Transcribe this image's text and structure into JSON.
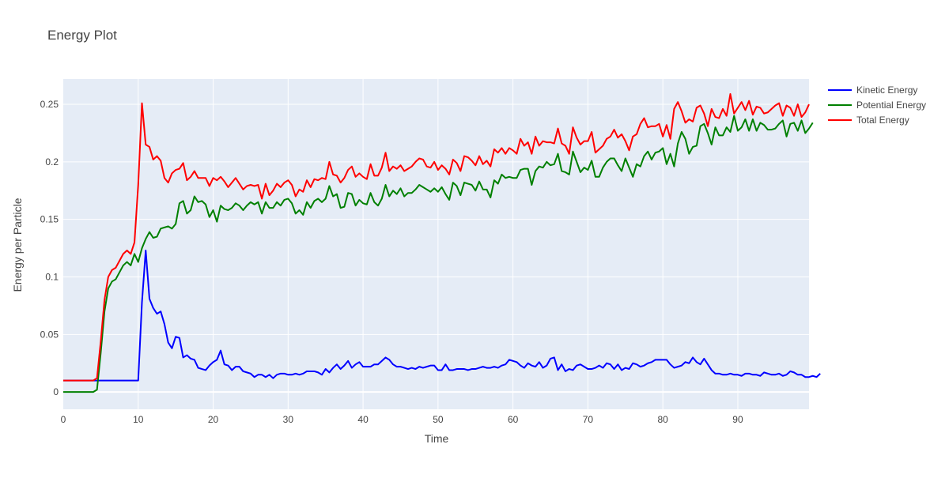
{
  "chart_data": {
    "type": "line",
    "title": "Energy Plot",
    "xlabel": "Time",
    "ylabel": "Energy per Particle",
    "xlim": [
      0,
      99.5
    ],
    "ylim": [
      -0.015,
      0.272
    ],
    "x_ticks": [
      0,
      10,
      20,
      30,
      40,
      50,
      60,
      70,
      80,
      90
    ],
    "y_ticks": [
      0,
      0.05,
      0.1,
      0.15,
      0.2,
      0.25
    ],
    "x_tick_labels": [
      "0",
      "10",
      "20",
      "30",
      "40",
      "50",
      "60",
      "70",
      "80",
      "90"
    ],
    "y_tick_labels": [
      "0",
      "0.05",
      "0.1",
      "0.15",
      "0.2",
      "0.25"
    ],
    "grid": true,
    "legend_position": "top-right, outside plot",
    "colors": {
      "plot_background": "#e5ecf6",
      "grid": "#ffffff",
      "text": "#444444",
      "title": "#444444"
    },
    "x_start": 0,
    "x_step": 0.5,
    "series": [
      {
        "name": "Kinetic Energy",
        "color": "#0000ff",
        "values": [
          0.01,
          0.01,
          0.01,
          0.01,
          0.01,
          0.01,
          0.01,
          0.01,
          0.01,
          0.01,
          0.01,
          0.01,
          0.01,
          0.01,
          0.01,
          0.01,
          0.01,
          0.01,
          0.01,
          0.01,
          0.01,
          0.078,
          0.123,
          0.081,
          0.073,
          0.068,
          0.07,
          0.059,
          0.043,
          0.038,
          0.048,
          0.047,
          0.03,
          0.032,
          0.029,
          0.028,
          0.021,
          0.02,
          0.019,
          0.023,
          0.026,
          0.028,
          0.036,
          0.024,
          0.023,
          0.019,
          0.022,
          0.022,
          0.018,
          0.017,
          0.016,
          0.013,
          0.015,
          0.015,
          0.013,
          0.015,
          0.012,
          0.015,
          0.016,
          0.016,
          0.015,
          0.015,
          0.016,
          0.015,
          0.016,
          0.018,
          0.018,
          0.018,
          0.017,
          0.015,
          0.02,
          0.017,
          0.021,
          0.024,
          0.02,
          0.023,
          0.027,
          0.021,
          0.024,
          0.026,
          0.022,
          0.022,
          0.022,
          0.024,
          0.024,
          0.027,
          0.03,
          0.028,
          0.024,
          0.022,
          0.022,
          0.021,
          0.02,
          0.021,
          0.02,
          0.022,
          0.021,
          0.022,
          0.023,
          0.023,
          0.019,
          0.019,
          0.024,
          0.019,
          0.019,
          0.02,
          0.02,
          0.02,
          0.019,
          0.02,
          0.02,
          0.021,
          0.022,
          0.021,
          0.021,
          0.022,
          0.021,
          0.023,
          0.024,
          0.028,
          0.027,
          0.026,
          0.023,
          0.021,
          0.025,
          0.023,
          0.022,
          0.026,
          0.021,
          0.023,
          0.029,
          0.03,
          0.019,
          0.024,
          0.018,
          0.02,
          0.019,
          0.023,
          0.024,
          0.022,
          0.02,
          0.02,
          0.021,
          0.023,
          0.021,
          0.025,
          0.024,
          0.02,
          0.024,
          0.019,
          0.021,
          0.02,
          0.025,
          0.024,
          0.022,
          0.023,
          0.025,
          0.026,
          0.028,
          0.028,
          0.028,
          0.028,
          0.024,
          0.021,
          0.022,
          0.023,
          0.026,
          0.025,
          0.03,
          0.026,
          0.024,
          0.029,
          0.024,
          0.019,
          0.016,
          0.016,
          0.015,
          0.015,
          0.016,
          0.015,
          0.015,
          0.014,
          0.016,
          0.016,
          0.015,
          0.015,
          0.014,
          0.017,
          0.016,
          0.015,
          0.015,
          0.016,
          0.014,
          0.015,
          0.018,
          0.017,
          0.015,
          0.015,
          0.013,
          0.013,
          0.014,
          0.013,
          0.016
        ]
      },
      {
        "name": "Potential Energy",
        "color": "#008000",
        "values": [
          0.0,
          0.0,
          0.0,
          0.0,
          0.0,
          0.0,
          0.0,
          0.0,
          0.0,
          0.002,
          0.034,
          0.07,
          0.09,
          0.096,
          0.098,
          0.104,
          0.11,
          0.113,
          0.11,
          0.12,
          0.113,
          0.125,
          0.133,
          0.139,
          0.134,
          0.135,
          0.142,
          0.143,
          0.144,
          0.142,
          0.146,
          0.164,
          0.166,
          0.155,
          0.158,
          0.17,
          0.165,
          0.166,
          0.163,
          0.152,
          0.158,
          0.148,
          0.162,
          0.159,
          0.158,
          0.16,
          0.164,
          0.162,
          0.158,
          0.162,
          0.165,
          0.163,
          0.165,
          0.155,
          0.165,
          0.16,
          0.16,
          0.165,
          0.162,
          0.167,
          0.168,
          0.164,
          0.155,
          0.158,
          0.154,
          0.165,
          0.16,
          0.166,
          0.168,
          0.165,
          0.168,
          0.179,
          0.17,
          0.172,
          0.16,
          0.161,
          0.173,
          0.172,
          0.162,
          0.167,
          0.164,
          0.163,
          0.173,
          0.165,
          0.162,
          0.168,
          0.18,
          0.17,
          0.175,
          0.172,
          0.177,
          0.17,
          0.173,
          0.173,
          0.176,
          0.18,
          0.178,
          0.176,
          0.174,
          0.177,
          0.174,
          0.178,
          0.172,
          0.167,
          0.182,
          0.179,
          0.171,
          0.182,
          0.181,
          0.18,
          0.175,
          0.183,
          0.176,
          0.176,
          0.169,
          0.184,
          0.181,
          0.189,
          0.186,
          0.187,
          0.186,
          0.186,
          0.193,
          0.194,
          0.194,
          0.18,
          0.192,
          0.196,
          0.195,
          0.2,
          0.197,
          0.198,
          0.207,
          0.192,
          0.191,
          0.189,
          0.209,
          0.2,
          0.191,
          0.195,
          0.193,
          0.201,
          0.187,
          0.187,
          0.195,
          0.2,
          0.203,
          0.203,
          0.197,
          0.192,
          0.203,
          0.195,
          0.187,
          0.198,
          0.196,
          0.205,
          0.209,
          0.202,
          0.208,
          0.209,
          0.212,
          0.198,
          0.207,
          0.196,
          0.216,
          0.226,
          0.22,
          0.207,
          0.213,
          0.214,
          0.231,
          0.233,
          0.225,
          0.215,
          0.23,
          0.223,
          0.223,
          0.23,
          0.226,
          0.24,
          0.227,
          0.23,
          0.237,
          0.227,
          0.237,
          0.227,
          0.234,
          0.232,
          0.228,
          0.228,
          0.229,
          0.233,
          0.236,
          0.222,
          0.233,
          0.234,
          0.227,
          0.236,
          0.225,
          0.229,
          0.234
        ]
      },
      {
        "name": "Total Energy",
        "color": "#ff0000",
        "values": [
          0.01,
          0.01,
          0.01,
          0.01,
          0.01,
          0.01,
          0.01,
          0.01,
          0.01,
          0.012,
          0.044,
          0.08,
          0.1,
          0.106,
          0.108,
          0.114,
          0.12,
          0.123,
          0.12,
          0.13,
          0.18,
          0.251,
          0.215,
          0.213,
          0.202,
          0.205,
          0.201,
          0.186,
          0.182,
          0.19,
          0.193,
          0.194,
          0.199,
          0.184,
          0.187,
          0.192,
          0.186,
          0.186,
          0.186,
          0.179,
          0.186,
          0.184,
          0.187,
          0.183,
          0.178,
          0.182,
          0.186,
          0.181,
          0.176,
          0.179,
          0.18,
          0.179,
          0.18,
          0.168,
          0.181,
          0.171,
          0.175,
          0.181,
          0.178,
          0.182,
          0.184,
          0.18,
          0.17,
          0.176,
          0.174,
          0.184,
          0.178,
          0.185,
          0.184,
          0.186,
          0.185,
          0.2,
          0.189,
          0.188,
          0.182,
          0.186,
          0.193,
          0.196,
          0.187,
          0.19,
          0.187,
          0.185,
          0.198,
          0.188,
          0.188,
          0.195,
          0.208,
          0.192,
          0.196,
          0.194,
          0.197,
          0.192,
          0.194,
          0.196,
          0.2,
          0.203,
          0.202,
          0.196,
          0.195,
          0.2,
          0.193,
          0.197,
          0.194,
          0.189,
          0.202,
          0.199,
          0.192,
          0.205,
          0.204,
          0.201,
          0.197,
          0.205,
          0.198,
          0.201,
          0.196,
          0.211,
          0.208,
          0.212,
          0.207,
          0.212,
          0.21,
          0.207,
          0.22,
          0.214,
          0.217,
          0.207,
          0.222,
          0.214,
          0.218,
          0.217,
          0.217,
          0.216,
          0.229,
          0.216,
          0.214,
          0.207,
          0.23,
          0.221,
          0.215,
          0.218,
          0.218,
          0.226,
          0.208,
          0.211,
          0.214,
          0.22,
          0.222,
          0.228,
          0.221,
          0.224,
          0.218,
          0.21,
          0.222,
          0.224,
          0.233,
          0.238,
          0.23,
          0.231,
          0.231,
          0.233,
          0.222,
          0.232,
          0.22,
          0.246,
          0.252,
          0.244,
          0.234,
          0.237,
          0.235,
          0.247,
          0.249,
          0.242,
          0.231,
          0.246,
          0.239,
          0.238,
          0.246,
          0.24,
          0.259,
          0.242,
          0.247,
          0.252,
          0.245,
          0.253,
          0.241,
          0.248,
          0.247,
          0.242,
          0.243,
          0.246,
          0.249,
          0.251,
          0.24,
          0.249,
          0.247,
          0.24,
          0.25,
          0.239,
          0.243,
          0.25
        ]
      }
    ]
  }
}
